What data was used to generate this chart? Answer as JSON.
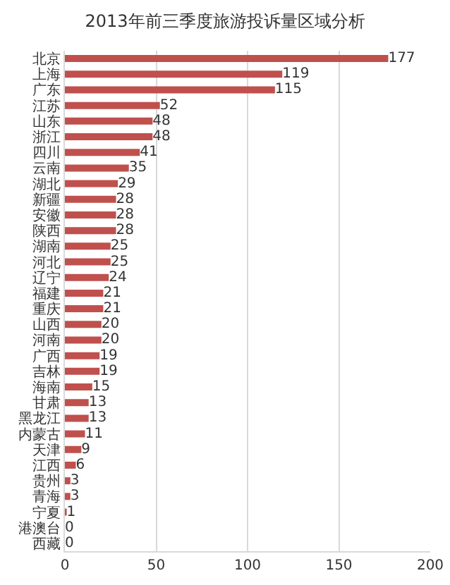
{
  "chart_data": {
    "type": "bar",
    "orientation": "horizontal",
    "title": "2013年前三季度旅游投诉量区域分析",
    "categories": [
      "北京",
      "上海",
      "广东",
      "江苏",
      "山东",
      "浙江",
      "四川",
      "云南",
      "湖北",
      "新疆",
      "安徽",
      "陕西",
      "湖南",
      "河北",
      "辽宁",
      "福建",
      "重庆",
      "山西",
      "河南",
      "广西",
      "吉林",
      "海南",
      "甘肃",
      "黑龙江",
      "内蒙古",
      "天津",
      "江西",
      "贵州",
      "青海",
      "宁夏",
      "港澳台",
      "西藏"
    ],
    "values": [
      177,
      119,
      115,
      52,
      48,
      48,
      41,
      35,
      29,
      28,
      28,
      28,
      25,
      25,
      24,
      21,
      21,
      20,
      20,
      19,
      19,
      15,
      13,
      13,
      11,
      9,
      6,
      3,
      3,
      1,
      0,
      0
    ],
    "color": "#c0504d",
    "xlim": [
      0,
      200
    ],
    "xticks": [
      0,
      50,
      100,
      150,
      200
    ],
    "grid": "x",
    "data_labels": true,
    "legend": false
  }
}
